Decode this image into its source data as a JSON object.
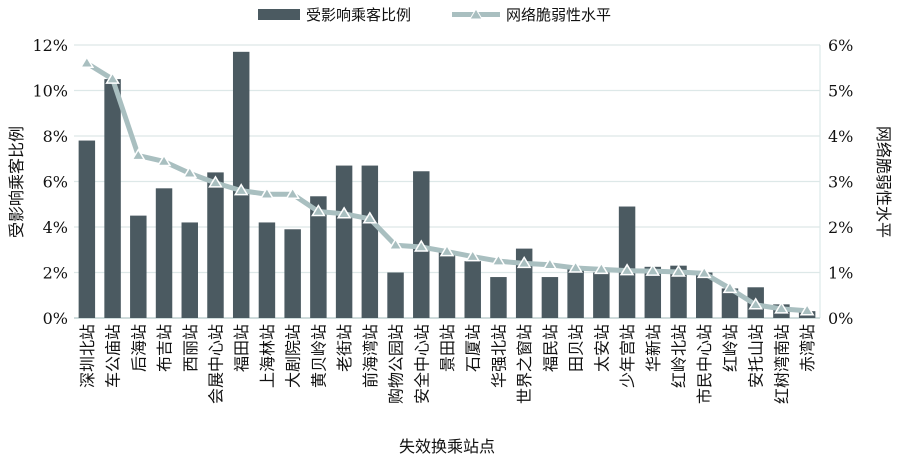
{
  "chart_data": {
    "type": "bar+line",
    "xlabel": "失效换乘站点",
    "ylabel_left": "受影响乘客比例",
    "ylabel_right": "网络脆弱性水平",
    "legend_position": "top-center",
    "grid": true,
    "ylim_left": [
      0,
      12
    ],
    "ylim_right": [
      0,
      6
    ],
    "left_ticks": [
      "0%",
      "2%",
      "4%",
      "6%",
      "8%",
      "10%",
      "12%"
    ],
    "right_ticks": [
      "0%",
      "1%",
      "2%",
      "3%",
      "4%",
      "5%",
      "6%"
    ],
    "categories": [
      "深圳北站",
      "车公庙站",
      "后海站",
      "布吉站",
      "西丽站",
      "会展中心站",
      "福田站",
      "上海林站",
      "大剧院站",
      "黄贝岭站",
      "老街站",
      "前海湾站",
      "购物公园站",
      "安全中心站",
      "景田站",
      "石厦站",
      "华强北站",
      "世界之窗站",
      "福民站",
      "田贝站",
      "太安站",
      "少年宫站",
      "华新站",
      "红岭北站",
      "市民中心站",
      "红岭站",
      "安托山站",
      "红树湾南站",
      "赤湾站"
    ],
    "series": [
      {
        "name": "受影响乘客比例",
        "type": "bar",
        "axis": "left",
        "color": "#4b5a61",
        "values": [
          7.8,
          10.5,
          4.5,
          5.7,
          4.2,
          6.4,
          11.7,
          4.2,
          3.9,
          5.35,
          6.7,
          6.7,
          2.0,
          6.45,
          2.9,
          2.5,
          1.8,
          3.05,
          1.8,
          2.2,
          2.0,
          4.9,
          2.25,
          2.3,
          2.0,
          1.3,
          1.35,
          0.6,
          0.3
        ]
      },
      {
        "name": "网络脆弱性水平",
        "type": "line",
        "axis": "right",
        "color": "#a9bfc0",
        "values": [
          5.6,
          5.25,
          3.57,
          3.44,
          3.18,
          2.97,
          2.8,
          2.72,
          2.72,
          2.34,
          2.29,
          2.18,
          1.6,
          1.56,
          1.46,
          1.35,
          1.25,
          1.2,
          1.17,
          1.1,
          1.07,
          1.04,
          1.03,
          1.01,
          0.98,
          0.65,
          0.29,
          0.2,
          0.16
        ]
      }
    ]
  }
}
